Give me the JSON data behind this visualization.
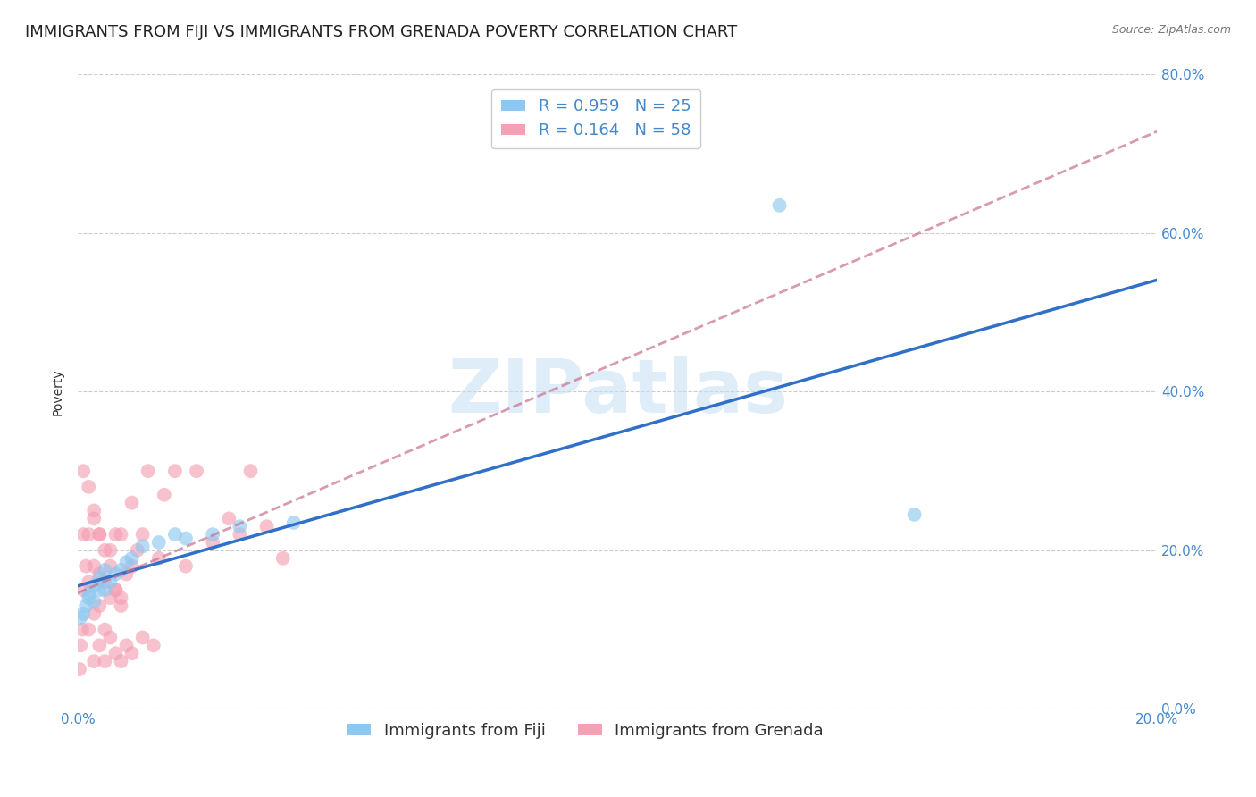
{
  "title": "IMMIGRANTS FROM FIJI VS IMMIGRANTS FROM GRENADA POVERTY CORRELATION CHART",
  "source": "Source: ZipAtlas.com",
  "ylabel": "Poverty",
  "xlim": [
    0.0,
    0.2
  ],
  "ylim": [
    0.0,
    0.8
  ],
  "yticks": [
    0.0,
    0.2,
    0.4,
    0.6,
    0.8
  ],
  "fiji_color": "#8ec8f0",
  "grenada_color": "#f5a0b5",
  "fiji_line_color": "#3070c8",
  "grenada_line_color": "#cc3355",
  "grenada_line_style": "--",
  "fiji_R": 0.959,
  "fiji_N": 25,
  "grenada_R": 0.164,
  "grenada_N": 58,
  "watermark_text": "ZIPatlas",
  "fiji_scatter_x": [
    0.0005,
    0.001,
    0.0015,
    0.002,
    0.002,
    0.003,
    0.003,
    0.004,
    0.004,
    0.005,
    0.005,
    0.006,
    0.007,
    0.008,
    0.009,
    0.01,
    0.012,
    0.015,
    0.018,
    0.02,
    0.025,
    0.03,
    0.04,
    0.13,
    0.155
  ],
  "fiji_scatter_y": [
    0.115,
    0.12,
    0.13,
    0.14,
    0.145,
    0.135,
    0.155,
    0.15,
    0.165,
    0.15,
    0.175,
    0.16,
    0.17,
    0.175,
    0.185,
    0.19,
    0.205,
    0.21,
    0.22,
    0.215,
    0.22,
    0.23,
    0.235,
    0.635,
    0.245
  ],
  "grenada_scatter_x": [
    0.0003,
    0.0005,
    0.0008,
    0.001,
    0.001,
    0.0015,
    0.002,
    0.002,
    0.002,
    0.003,
    0.003,
    0.003,
    0.004,
    0.004,
    0.004,
    0.005,
    0.005,
    0.006,
    0.006,
    0.007,
    0.007,
    0.008,
    0.008,
    0.009,
    0.01,
    0.01,
    0.011,
    0.012,
    0.013,
    0.015,
    0.016,
    0.018,
    0.02,
    0.022,
    0.025,
    0.028,
    0.03,
    0.032,
    0.035,
    0.038,
    0.003,
    0.004,
    0.005,
    0.006,
    0.007,
    0.008,
    0.009,
    0.01,
    0.012,
    0.014,
    0.001,
    0.002,
    0.003,
    0.004,
    0.005,
    0.006,
    0.007,
    0.008
  ],
  "grenada_scatter_y": [
    0.05,
    0.08,
    0.1,
    0.15,
    0.22,
    0.18,
    0.1,
    0.16,
    0.22,
    0.12,
    0.18,
    0.24,
    0.13,
    0.17,
    0.22,
    0.1,
    0.16,
    0.14,
    0.2,
    0.15,
    0.22,
    0.14,
    0.22,
    0.17,
    0.18,
    0.26,
    0.2,
    0.22,
    0.3,
    0.19,
    0.27,
    0.3,
    0.18,
    0.3,
    0.21,
    0.24,
    0.22,
    0.3,
    0.23,
    0.19,
    0.06,
    0.08,
    0.06,
    0.09,
    0.07,
    0.06,
    0.08,
    0.07,
    0.09,
    0.08,
    0.3,
    0.28,
    0.25,
    0.22,
    0.2,
    0.18,
    0.15,
    0.13
  ],
  "background_color": "#ffffff",
  "grid_color": "#cccccc",
  "tick_color": "#4488cc",
  "title_color": "#222222",
  "title_fontsize": 13,
  "axis_label_fontsize": 10,
  "tick_fontsize": 11,
  "legend_fontsize": 13,
  "scatter_size": 130,
  "scatter_alpha": 0.65
}
